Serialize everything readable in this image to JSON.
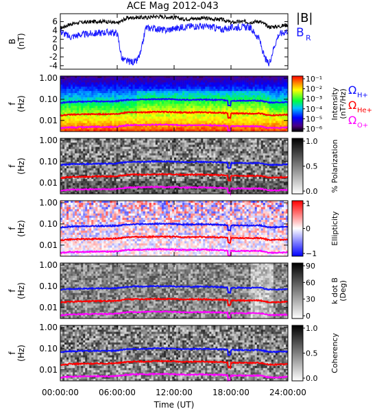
{
  "title": "ACE Mag 2012-043",
  "colors": {
    "B": "#000000",
    "B_R": "#1a1aff",
    "H_plus": "#1010ff",
    "He_plus": "#ff0000",
    "O_plus": "#ff00ff"
  },
  "chart_data": [
    {
      "type": "line",
      "panel": "B",
      "ylabel": "B",
      "yunit": "(nT)",
      "yticks": [
        "6",
        "4",
        "2",
        "0",
        "-2",
        "-4"
      ],
      "ylim": [
        -4.8,
        7.8
      ],
      "legend": [
        {
          "name": "|B|",
          "color": "#000000"
        },
        {
          "name": "B",
          "sub": "R",
          "color": "#1a1aff"
        }
      ],
      "series": [
        {
          "name": "|B|",
          "x_hours": [
            0,
            1,
            2,
            3,
            4,
            5,
            6,
            7,
            8,
            9,
            10,
            11,
            12,
            13,
            14,
            15,
            16,
            17,
            18,
            19,
            20,
            21,
            22,
            23,
            24
          ],
          "values": [
            4.5,
            5.4,
            5.8,
            5.9,
            6.1,
            6.0,
            5.6,
            6.8,
            7.0,
            6.9,
            7.2,
            7.1,
            6.9,
            6.6,
            6.7,
            6.8,
            6.6,
            6.5,
            5.8,
            6.0,
            5.9,
            6.1,
            4.8,
            4.9,
            5.3
          ]
        },
        {
          "name": "B_R",
          "x_hours": [
            0,
            1,
            2,
            3,
            4,
            5,
            6,
            6.5,
            7,
            8,
            8.5,
            9,
            10,
            11,
            12,
            13,
            14,
            15,
            16,
            17,
            18,
            19,
            20,
            21,
            21.5,
            22,
            22.5,
            23,
            24
          ],
          "values": [
            3.8,
            2.5,
            3.0,
            3.2,
            3.4,
            3.6,
            3.4,
            -2.5,
            -3.0,
            -3.2,
            -1.0,
            4.6,
            4.5,
            4.0,
            4.4,
            4.8,
            5.0,
            4.9,
            4.8,
            4.2,
            4.6,
            4.8,
            4.7,
            2.0,
            -2.0,
            -3.8,
            0.0,
            3.0,
            4.0
          ]
        }
      ]
    },
    {
      "type": "heatmap",
      "panel": "intensity",
      "ylabel": "f",
      "yunit": "(Hz)",
      "yticks": [
        "1.00",
        "0.10",
        "0.01"
      ],
      "colorbar": {
        "label": "Intensity",
        "unit": "(nT²/Hz)",
        "ticks": [
          "10⁻¹",
          "10⁻²",
          "10⁻³",
          "10⁻⁴",
          "10⁻⁵",
          "10⁻⁶"
        ],
        "scale": "rainbow"
      },
      "legend": [
        {
          "name": "Ω",
          "sub": "H+",
          "color": "#1010ff"
        },
        {
          "name": "Ω",
          "sub": "He+",
          "color": "#ff0000"
        },
        {
          "name": "Ω",
          "sub": "O+",
          "color": "#ff00ff"
        }
      ]
    },
    {
      "type": "heatmap",
      "panel": "polarization",
      "ylabel": "f",
      "yunit": "(Hz)",
      "yticks": [
        "1.00",
        "0.10",
        "0.01"
      ],
      "colorbar": {
        "label": "% Polarization",
        "ticks": [
          "1.0",
          "0.5",
          "0.0"
        ],
        "scale": "gray"
      }
    },
    {
      "type": "heatmap",
      "panel": "ellipticity",
      "ylabel": "f",
      "yunit": "(Hz)",
      "yticks": [
        "1.00",
        "0.10",
        "0.01"
      ],
      "colorbar": {
        "label": "Ellipticity",
        "ticks": [
          "1",
          "0",
          "−1"
        ],
        "scale": "bwr"
      }
    },
    {
      "type": "heatmap",
      "panel": "kdotb",
      "ylabel": "f",
      "yunit": "(Hz)",
      "yticks": [
        "1.00",
        "0.10",
        "0.01"
      ],
      "colorbar": {
        "label": "k dot B",
        "unit": "(Deg)",
        "ticks": [
          "90",
          "60",
          "30",
          "0"
        ],
        "scale": "gray"
      }
    },
    {
      "type": "heatmap",
      "panel": "coherency",
      "ylabel": "f",
      "yunit": "(Hz)",
      "yticks": [
        "1.00",
        "0.10",
        "0.01"
      ],
      "colorbar": {
        "label": "Coherency",
        "ticks": [
          "1.0",
          "0.5",
          "0.0"
        ],
        "scale": "gray"
      }
    }
  ],
  "gyrofrequencies": {
    "x_hours": [
      0,
      1,
      2,
      3,
      4,
      5,
      6,
      7,
      8,
      9,
      10,
      11,
      12,
      13,
      14,
      15,
      16,
      17,
      18,
      19,
      20,
      21,
      22,
      23,
      24
    ],
    "H_plus_hz": [
      0.068,
      0.075,
      0.077,
      0.078,
      0.08,
      0.079,
      0.082,
      0.095,
      0.098,
      0.097,
      0.102,
      0.101,
      0.099,
      0.095,
      0.096,
      0.097,
      0.094,
      0.093,
      0.085,
      0.086,
      0.084,
      0.087,
      0.07,
      0.071,
      0.075
    ],
    "He_plus_hz": [
      0.017,
      0.0188,
      0.0193,
      0.0195,
      0.02,
      0.0198,
      0.0205,
      0.0238,
      0.0245,
      0.0243,
      0.0255,
      0.0253,
      0.0248,
      0.0238,
      0.024,
      0.0243,
      0.0235,
      0.0233,
      0.0213,
      0.0215,
      0.021,
      0.0218,
      0.0175,
      0.0178,
      0.0188
    ],
    "O_plus_hz": [
      0.0043,
      0.0047,
      0.0048,
      0.0049,
      0.005,
      0.0049,
      0.0051,
      0.0059,
      0.0061,
      0.0061,
      0.0064,
      0.0063,
      0.0062,
      0.0059,
      0.006,
      0.0061,
      0.0059,
      0.0058,
      0.0053,
      0.0054,
      0.0053,
      0.0054,
      0.0044,
      0.0044,
      0.0047
    ]
  },
  "x_axis": {
    "label": "Time (UT)",
    "tick_labels": [
      "00:00:00",
      "06:00:00",
      "12:00:00",
      "18:00:00",
      "24:00:00"
    ],
    "tick_hours": [
      0,
      6,
      12,
      18,
      24
    ],
    "xlim": [
      0,
      24
    ]
  }
}
